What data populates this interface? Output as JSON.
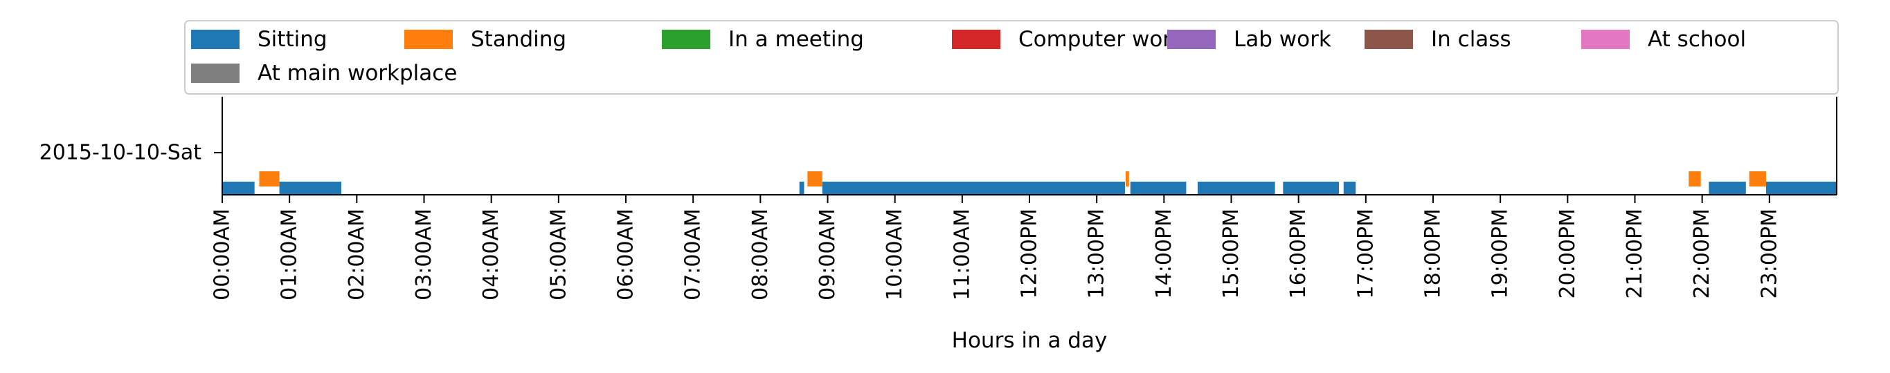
{
  "chart_data": {
    "type": "timeline",
    "row_label": "2015-10-10-Sat",
    "xlabel": "Hours in a day",
    "xlim": [
      0,
      24
    ],
    "x_ticks": [
      {
        "value": 0,
        "label": "00:00AM"
      },
      {
        "value": 1,
        "label": "01:00AM"
      },
      {
        "value": 2,
        "label": "02:00AM"
      },
      {
        "value": 3,
        "label": "03:00AM"
      },
      {
        "value": 4,
        "label": "04:00AM"
      },
      {
        "value": 5,
        "label": "05:00AM"
      },
      {
        "value": 6,
        "label": "06:00AM"
      },
      {
        "value": 7,
        "label": "07:00AM"
      },
      {
        "value": 8,
        "label": "08:00AM"
      },
      {
        "value": 9,
        "label": "09:00AM"
      },
      {
        "value": 10,
        "label": "10:00AM"
      },
      {
        "value": 11,
        "label": "11:00AM"
      },
      {
        "value": 12,
        "label": "12:00PM"
      },
      {
        "value": 13,
        "label": "13:00PM"
      },
      {
        "value": 14,
        "label": "14:00PM"
      },
      {
        "value": 15,
        "label": "15:00PM"
      },
      {
        "value": 16,
        "label": "16:00PM"
      },
      {
        "value": 17,
        "label": "17:00PM"
      },
      {
        "value": 18,
        "label": "18:00PM"
      },
      {
        "value": 19,
        "label": "19:00PM"
      },
      {
        "value": 20,
        "label": "20:00PM"
      },
      {
        "value": 21,
        "label": "21:00PM"
      },
      {
        "value": 22,
        "label": "22:00PM"
      },
      {
        "value": 23,
        "label": "23:00PM"
      }
    ],
    "legend_position": "top",
    "series": [
      {
        "name": "Sitting",
        "color": "#1f77b4",
        "segments": [
          [
            0.0,
            0.48
          ],
          [
            0.85,
            1.77
          ],
          [
            8.58,
            8.65
          ],
          [
            8.92,
            13.42
          ],
          [
            13.5,
            14.33
          ],
          [
            14.5,
            15.65
          ],
          [
            15.77,
            16.6
          ],
          [
            16.67,
            16.85
          ],
          [
            22.1,
            22.65
          ],
          [
            22.95,
            24.0
          ]
        ]
      },
      {
        "name": "Standing",
        "color": "#ff7f0e",
        "segments": [
          [
            0.55,
            0.85
          ],
          [
            8.7,
            8.92
          ],
          [
            13.43,
            13.48
          ],
          [
            21.8,
            21.98
          ],
          [
            22.7,
            22.95
          ]
        ]
      },
      {
        "name": "In a meeting",
        "color": "#2ca02c",
        "segments": []
      },
      {
        "name": "Computer work",
        "color": "#d62728",
        "segments": []
      },
      {
        "name": "Lab work",
        "color": "#9467bd",
        "segments": []
      },
      {
        "name": "In class",
        "color": "#8c564b",
        "segments": []
      },
      {
        "name": "At school",
        "color": "#e377c2",
        "segments": []
      },
      {
        "name": "At main workplace",
        "color": "#7f7f7f",
        "segments": []
      }
    ]
  }
}
